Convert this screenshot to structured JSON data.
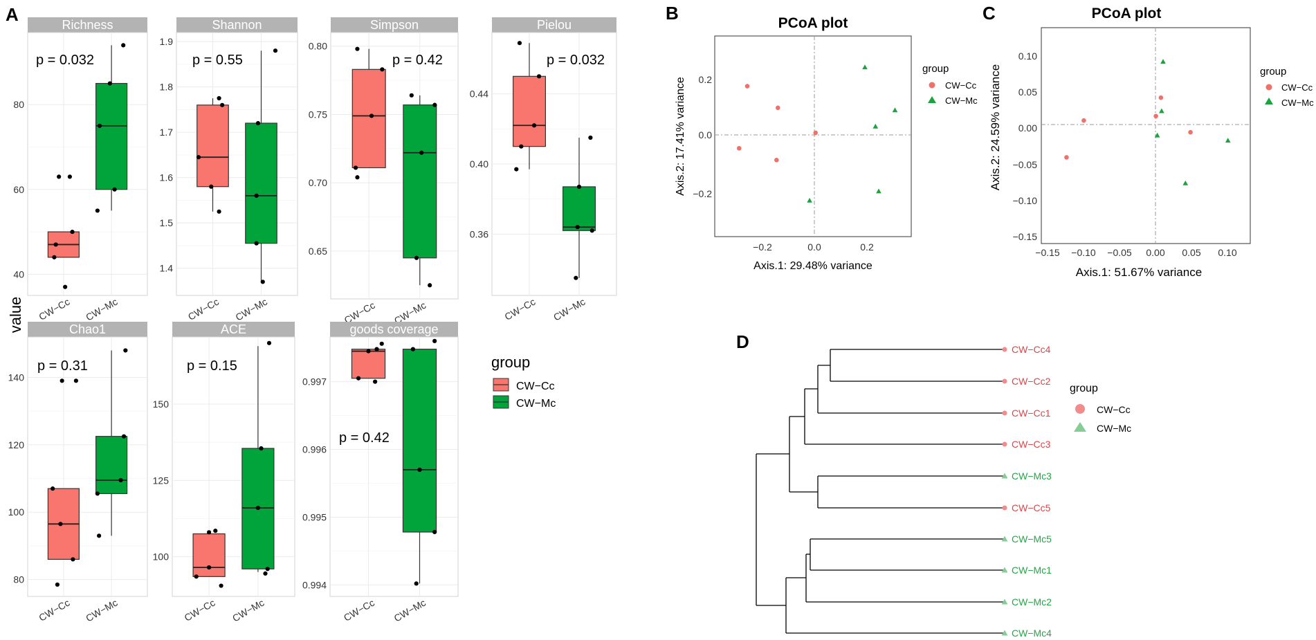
{
  "panel_labels": {
    "a": "A",
    "b": "B",
    "c": "C",
    "d": "D"
  },
  "colors": {
    "cc": "#F8766D",
    "mc": "#00A43A",
    "cc_point": "#EE7269",
    "mc_point": "#1BA33E",
    "strip": "#B3B3B3",
    "grid": "#EBEBEB",
    "dend_cc": "#D8474A",
    "dend_mc": "#27A446",
    "dend_mc_marker": "#86CC97"
  },
  "boxplot": {
    "ylabel": "value",
    "groups": [
      "CW−Cc",
      "CW−Mc"
    ],
    "legend_title": "group",
    "legend_items": [
      "CW−Cc",
      "CW−Mc"
    ]
  },
  "pcoa_b": {
    "title": "PCoA plot",
    "xlabel": "Axis.1: 29.48% variance",
    "ylabel": "Axis.2: 17.41% variance",
    "xticks": [
      "−0.2",
      "0.0",
      "0.2"
    ],
    "yticks": [
      "0.2",
      "0.0",
      "−0.2"
    ],
    "legend_title": "group",
    "legend_items": [
      "CW−Cc",
      "CW−Mc"
    ]
  },
  "pcoa_c": {
    "title": "PCoA plot",
    "xlabel": "Axis.1: 51.67% variance",
    "ylabel": "Axis.2: 24.59% variance",
    "xticks": [
      "−0.15",
      "−0.10",
      "−0.05",
      "0.00",
      "0.05",
      "0.10"
    ],
    "yticks": [
      "0.10",
      "0.05",
      "0.00",
      "−0.05",
      "−0.10",
      "−0.15"
    ],
    "legend_title": "group",
    "legend_items": [
      "CW−Cc",
      "CW−Mc"
    ]
  },
  "dendrogram": {
    "legend_title": "group",
    "legend_items": [
      "CW−Cc",
      "CW−Mc"
    ],
    "leaves": [
      "CW−Cc4",
      "CW−Cc2",
      "CW−Cc1",
      "CW−Cc3",
      "CW−Mc3",
      "CW−Cc5",
      "CW−Mc5",
      "CW−Mc1",
      "CW−Mc2",
      "CW−Mc4"
    ],
    "leaf_groups": [
      "cc",
      "cc",
      "cc",
      "cc",
      "mc",
      "cc",
      "mc",
      "mc",
      "mc",
      "mc"
    ]
  },
  "chart_data": [
    {
      "type": "box",
      "id": "richness",
      "title": "Richness",
      "pvalue": "p = 0.032",
      "categories": [
        "CW−Cc",
        "CW−Mc"
      ],
      "ylim": [
        35,
        97
      ],
      "yticks": [
        "40",
        "60",
        "80"
      ],
      "ytick_values": [
        40,
        60,
        80
      ],
      "series": [
        {
          "name": "CW−Cc",
          "q1": 44,
          "median": 47,
          "q3": 50,
          "whisker_low": 44,
          "whisker_high": 50,
          "points": [
            [
              -0.15,
              63
            ],
            [
              0.2,
              63
            ],
            [
              0.28,
              50
            ],
            [
              -0.25,
              47
            ],
            [
              -0.3,
              44
            ],
            [
              0.05,
              37
            ]
          ]
        },
        {
          "name": "CW−Mc",
          "q1": 60,
          "median": 75,
          "q3": 85,
          "whisker_low": 55,
          "whisker_high": 94,
          "points": [
            [
              0.38,
              94
            ],
            [
              -0.05,
              85
            ],
            [
              -0.38,
              75
            ],
            [
              0.1,
              60
            ],
            [
              -0.45,
              55
            ]
          ]
        }
      ]
    },
    {
      "type": "box",
      "id": "shannon",
      "title": "Shannon",
      "pvalue": "p = 0.55",
      "categories": [
        "CW−Cc",
        "CW−Mc"
      ],
      "ylim": [
        1.34,
        1.92
      ],
      "yticks": [
        "1.4",
        "1.5",
        "1.6",
        "1.7",
        "1.8",
        "1.9"
      ],
      "ytick_values": [
        1.4,
        1.5,
        1.6,
        1.7,
        1.8,
        1.9
      ],
      "series": [
        {
          "name": "CW−Cc",
          "q1": 1.58,
          "median": 1.645,
          "q3": 1.76,
          "whisker_low": 1.525,
          "whisker_high": 1.775,
          "points": [
            [
              0.2,
              1.775
            ],
            [
              0.3,
              1.76
            ],
            [
              -0.45,
              1.645
            ],
            [
              -0.05,
              1.58
            ],
            [
              0.2,
              1.525
            ]
          ]
        },
        {
          "name": "CW−Mc",
          "q1": 1.455,
          "median": 1.56,
          "q3": 1.72,
          "whisker_low": 1.37,
          "whisker_high": 1.88,
          "points": [
            [
              0.45,
              1.88
            ],
            [
              -0.1,
              1.72
            ],
            [
              -0.15,
              1.56
            ],
            [
              -0.15,
              1.455
            ],
            [
              0.05,
              1.37
            ]
          ]
        }
      ]
    },
    {
      "type": "box",
      "id": "simpson",
      "title": "Simpson",
      "pvalue": "p = 0.42",
      "categories": [
        "CW−Cc",
        "CW−Mc"
      ],
      "ylim": [
        0.615,
        0.81
      ],
      "yticks": [
        "0.65",
        "0.70",
        "0.75",
        "0.80"
      ],
      "ytick_values": [
        0.65,
        0.7,
        0.75,
        0.8
      ],
      "series": [
        {
          "name": "CW−Cc",
          "q1": 0.711,
          "median": 0.749,
          "q3": 0.783,
          "whisker_low": 0.711,
          "whisker_high": 0.798,
          "points": [
            [
              -0.35,
              0.798
            ],
            [
              0.4,
              0.783
            ],
            [
              0.08,
              0.749
            ],
            [
              -0.4,
              0.711
            ],
            [
              -0.35,
              0.704
            ]
          ]
        },
        {
          "name": "CW−Mc",
          "q1": 0.645,
          "median": 0.722,
          "q3": 0.757,
          "whisker_low": 0.625,
          "whisker_high": 0.764,
          "points": [
            [
              -0.25,
              0.764
            ],
            [
              0.45,
              0.757
            ],
            [
              0.05,
              0.722
            ],
            [
              -0.1,
              0.645
            ],
            [
              0.3,
              0.625
            ]
          ]
        }
      ]
    },
    {
      "type": "box",
      "id": "pielou",
      "title": "Pielou",
      "pvalue": "p = 0.032",
      "categories": [
        "CW−Cc",
        "CW−Mc"
      ],
      "ylim": [
        0.325,
        0.475
      ],
      "yticks": [
        "0.36",
        "0.40",
        "0.44"
      ],
      "ytick_values": [
        0.36,
        0.4,
        0.44
      ],
      "series": [
        {
          "name": "CW−Cc",
          "q1": 0.41,
          "median": 0.422,
          "q3": 0.45,
          "whisker_low": 0.397,
          "whisker_high": 0.469,
          "points": [
            [
              -0.3,
              0.469
            ],
            [
              0.3,
              0.45
            ],
            [
              0.15,
              0.422
            ],
            [
              -0.25,
              0.41
            ],
            [
              -0.4,
              0.397
            ]
          ]
        },
        {
          "name": "CW−Mc",
          "q1": 0.362,
          "median": 0.364,
          "q3": 0.387,
          "whisker_low": 0.335,
          "whisker_high": 0.415,
          "points": [
            [
              0.35,
              0.415
            ],
            [
              0.0,
              0.387
            ],
            [
              -0.05,
              0.364
            ],
            [
              0.4,
              0.362
            ],
            [
              -0.1,
              0.335
            ]
          ]
        }
      ]
    },
    {
      "type": "box",
      "id": "chao1",
      "title": "Chao1",
      "pvalue": "p = 0.31",
      "categories": [
        "CW−Cc",
        "CW−Mc"
      ],
      "ylim": [
        75,
        152
      ],
      "yticks": [
        "80",
        "100",
        "120",
        "140"
      ],
      "ytick_values": [
        80,
        100,
        120,
        140
      ],
      "series": [
        {
          "name": "CW−Cc",
          "q1": 86,
          "median": 96.5,
          "q3": 107,
          "whisker_low": 86,
          "whisker_high": 107,
          "points": [
            [
              -0.05,
              139
            ],
            [
              0.4,
              139
            ],
            [
              -0.35,
              107
            ],
            [
              -0.1,
              96.5
            ],
            [
              0.3,
              86
            ],
            [
              -0.2,
              78.5
            ]
          ]
        },
        {
          "name": "CW−Mc",
          "q1": 105.5,
          "median": 109.5,
          "q3": 122.5,
          "whisker_low": 93,
          "whisker_high": 148,
          "points": [
            [
              0.45,
              148
            ],
            [
              0.4,
              122.5
            ],
            [
              -0.45,
              105.5
            ],
            [
              0.3,
              109.5
            ],
            [
              -0.4,
              93
            ]
          ]
        }
      ]
    },
    {
      "type": "box",
      "id": "ace",
      "title": "ACE",
      "pvalue": "p = 0.15",
      "categories": [
        "CW−Cc",
        "CW−Mc"
      ],
      "ylim": [
        87,
        172
      ],
      "yticks": [
        "100",
        "125",
        "150"
      ],
      "ytick_values": [
        100,
        125,
        150
      ],
      "series": [
        {
          "name": "CW−Cc",
          "q1": 93.5,
          "median": 96.5,
          "q3": 107.5,
          "whisker_low": 93.5,
          "whisker_high": 107.5,
          "points": [
            [
              0.0,
              108
            ],
            [
              0.2,
              108.5
            ],
            [
              -0.4,
              93.5
            ],
            [
              0.0,
              96.5
            ],
            [
              0.38,
              90.5
            ]
          ]
        },
        {
          "name": "CW−Mc",
          "q1": 96,
          "median": 116,
          "q3": 135.5,
          "whisker_low": 95,
          "whisker_high": 169,
          "points": [
            [
              0.35,
              170
            ],
            [
              0.1,
              135.5
            ],
            [
              0.0,
              116
            ],
            [
              0.3,
              96
            ],
            [
              0.23,
              94.5
            ]
          ]
        }
      ]
    },
    {
      "type": "box",
      "id": "goods",
      "title": "goods coverage",
      "pvalue": "p = 0.42",
      "categories": [
        "CW−Cc",
        "CW−Mc"
      ],
      "ylim": [
        0.99383,
        0.99766
      ],
      "yticks": [
        "0.994",
        "0.995",
        "0.996",
        "0.997"
      ],
      "ytick_values": [
        0.994,
        0.995,
        0.996,
        0.997
      ],
      "series": [
        {
          "name": "CW−Cc",
          "q1": 0.99705,
          "median": 0.99745,
          "q3": 0.99748,
          "whisker_low": 0.99705,
          "whisker_high": 0.99748,
          "points": [
            [
              0.4,
              0.99756
            ],
            [
              0.0,
              0.99745
            ],
            [
              0.25,
              0.99748
            ],
            [
              -0.3,
              0.99705
            ],
            [
              0.2,
              0.997
            ]
          ]
        },
        {
          "name": "CW−Mc",
          "q1": 0.99478,
          "median": 0.9957,
          "q3": 0.99748,
          "whisker_low": 0.99402,
          "whisker_high": 0.99748,
          "points": [
            [
              0.45,
              0.9976
            ],
            [
              -0.2,
              0.99748
            ],
            [
              0.0,
              0.9957
            ],
            [
              0.45,
              0.99478
            ],
            [
              -0.1,
              0.99402
            ]
          ]
        }
      ]
    },
    {
      "type": "scatter",
      "id": "pcoa_b",
      "title": "PCoA plot",
      "xlim": [
        -0.38,
        0.345
      ],
      "ylim": [
        -0.37,
        0.345
      ],
      "xtick_values": [
        -0.2,
        0,
        0.2
      ],
      "ytick_values": [
        0.2,
        0,
        -0.2
      ],
      "series": [
        {
          "name": "CW−Cc",
          "points": [
            [
              -0.26,
              0.166
            ],
            [
              -0.147,
              0.089
            ],
            [
              -0.29,
              -0.055
            ],
            [
              -0.152,
              -0.097
            ],
            [
              -0.008,
              0.0
            ]
          ]
        },
        {
          "name": "CW−Mc",
          "points": [
            [
              0.174,
              0.234
            ],
            [
              0.285,
              0.081
            ],
            [
              0.213,
              0.023
            ],
            [
              0.225,
              -0.208
            ],
            [
              -0.03,
              -0.241
            ]
          ]
        }
      ]
    },
    {
      "type": "scatter",
      "id": "pcoa_c",
      "title": "PCoA plot",
      "xlim": [
        -0.162,
        0.128
      ],
      "ylim": [
        -0.157,
        0.136
      ],
      "xtick_values": [
        -0.15,
        -0.1,
        -0.05,
        0.0,
        0.05,
        0.1
      ],
      "ytick_values": [
        0.1,
        0.05,
        0.0,
        -0.05,
        -0.1,
        -0.15
      ],
      "series": [
        {
          "name": "CW−Cc",
          "points": [
            [
              -0.127,
              -0.04
            ],
            [
              -0.103,
              0.01
            ],
            [
              -0.003,
              0.016
            ],
            [
              0.004,
              0.041
            ],
            [
              0.045,
              -0.006
            ]
          ]
        },
        {
          "name": "CW−Mc",
          "points": [
            [
              0.007,
              0.09
            ],
            [
              0.005,
              0.023
            ],
            [
              -0.001,
              -0.01
            ],
            [
              0.038,
              -0.075
            ],
            [
              0.097,
              -0.017
            ]
          ]
        }
      ]
    }
  ]
}
